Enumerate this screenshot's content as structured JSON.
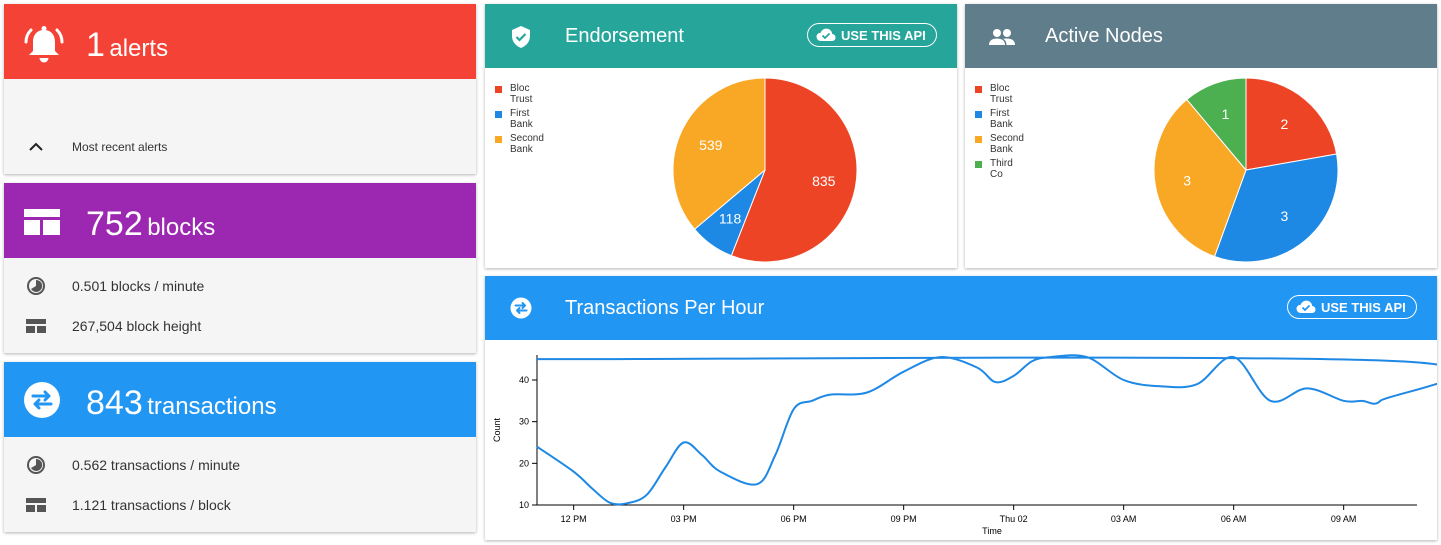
{
  "alerts": {
    "count": "1",
    "unit": "alerts",
    "section_label": "Most recent alerts",
    "color": "#f44336"
  },
  "blocks": {
    "count": "752",
    "unit": "blocks",
    "color": "#9c27b0",
    "rows": [
      {
        "icon": "clock-icon",
        "text": "0.501 blocks / minute"
      },
      {
        "icon": "block-icon",
        "text": "267,504 block height"
      }
    ]
  },
  "transactions": {
    "count": "843",
    "unit": "transactions",
    "color": "#2196f3",
    "rows": [
      {
        "icon": "clock-icon",
        "text": "0.562 transactions / minute"
      },
      {
        "icon": "block-icon",
        "text": "1.121 transactions / block"
      }
    ]
  },
  "endorsement": {
    "title": "Endorsement",
    "api_label": "USE THIS API",
    "color": "#26a69a",
    "legend": [
      {
        "name": "Bloc Trust",
        "color": "#ee4426"
      },
      {
        "name": "First Bank",
        "color": "#1e88e5"
      },
      {
        "name": "Second Bank",
        "color": "#f9a825"
      }
    ]
  },
  "active_nodes": {
    "title": "Active Nodes",
    "color": "#607d8b",
    "legend": [
      {
        "name": "Bloc Trust",
        "color": "#ee4426"
      },
      {
        "name": "First Bank",
        "color": "#1e88e5"
      },
      {
        "name": "Second Bank",
        "color": "#f9a825"
      },
      {
        "name": "Third Co",
        "color": "#4caf50"
      }
    ]
  },
  "tph": {
    "title": "Transactions Per Hour",
    "api_label": "USE THIS API",
    "color": "#2196f3"
  },
  "chart_data": [
    {
      "type": "pie",
      "title": "Endorsement",
      "categories": [
        "Bloc Trust",
        "First Bank",
        "Second Bank"
      ],
      "values": [
        835,
        118,
        539
      ],
      "colors": [
        "#ee4426",
        "#1e88e5",
        "#f9a825"
      ],
      "legend": "top-left"
    },
    {
      "type": "pie",
      "title": "Active Nodes",
      "categories": [
        "Bloc Trust",
        "First Bank",
        "Second Bank",
        "Third Co"
      ],
      "values": [
        2,
        3,
        3,
        1
      ],
      "colors": [
        "#ee4426",
        "#1e88e5",
        "#f9a825",
        "#4caf50"
      ],
      "legend": "top-left"
    },
    {
      "type": "line",
      "title": "Transactions Per Hour",
      "xlabel": "Time",
      "ylabel": "Count",
      "xlim": [
        "11:00",
        "11:00 +1d"
      ],
      "x_ticks": [
        "12 PM",
        "03 PM",
        "06 PM",
        "09 PM",
        "Thu 02",
        "03 AM",
        "06 AM",
        "09 AM"
      ],
      "y_ticks": [
        10,
        20,
        30,
        40
      ],
      "ylim": [
        10,
        46
      ],
      "grid": false,
      "color": "#1e88e5",
      "x": [
        "11:00",
        "12:00",
        "12:30",
        "13:00",
        "13:30",
        "14:00",
        "14:30",
        "15:00",
        "15:30",
        "16:00",
        "17:00",
        "17:30",
        "18:00",
        "18:30",
        "19:00",
        "20:00",
        "21:00",
        "22:00",
        "23:00",
        "23:30",
        "00:00",
        "00:30",
        "01:00",
        "02:00",
        "03:00",
        "04:00",
        "05:00",
        "06:00",
        "07:00",
        "08:00",
        "09:00",
        "09:30",
        "10:00",
        "10:30",
        "11:00"
      ],
      "values": [
        24,
        18,
        14,
        10.5,
        10.5,
        12.5,
        19,
        25,
        22,
        18,
        15,
        22,
        33,
        35,
        36.5,
        37,
        42,
        45.5,
        43,
        39.5,
        41,
        44.5,
        45.5,
        45.5,
        40,
        38.5,
        39,
        45.5,
        35,
        38,
        35,
        35,
        35,
        44.5,
        45
      ]
    }
  ]
}
